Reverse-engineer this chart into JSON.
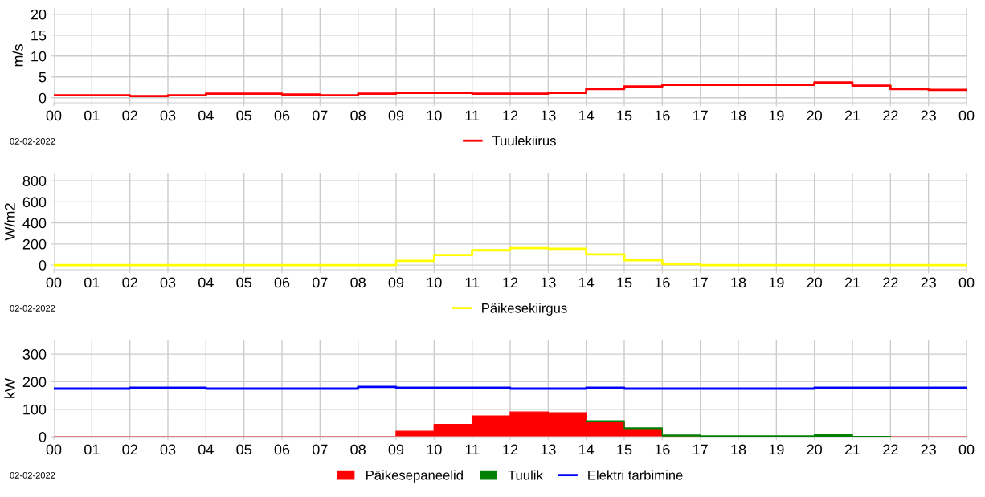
{
  "chart_data": [
    {
      "type": "step",
      "ylabel": "m/s",
      "x": [
        0,
        1,
        2,
        3,
        4,
        5,
        6,
        7,
        8,
        9,
        10,
        11,
        12,
        13,
        14,
        15,
        16,
        17,
        18,
        19,
        20,
        21,
        22,
        23,
        24
      ],
      "series": [
        {
          "name": "Tuulekiirus",
          "color": "#ff0000",
          "values": [
            0.6,
            0.6,
            0.4,
            0.6,
            1.0,
            1.0,
            0.8,
            0.6,
            1.0,
            1.2,
            1.2,
            1.0,
            1.0,
            1.2,
            2.1,
            2.7,
            3.1,
            3.1,
            3.1,
            3.1,
            3.7,
            2.9,
            2.1,
            1.9,
            1.9
          ]
        }
      ],
      "xlim": [
        0,
        24
      ],
      "ylim": [
        -1.2,
        21.5
      ],
      "yticks": [
        0,
        5,
        10,
        15,
        20
      ],
      "xticks": [
        {
          "value": 0,
          "label": "00"
        },
        {
          "value": 1,
          "label": "01"
        },
        {
          "value": 2,
          "label": "02"
        },
        {
          "value": 3,
          "label": "03"
        },
        {
          "value": 4,
          "label": "04"
        },
        {
          "value": 5,
          "label": "05"
        },
        {
          "value": 6,
          "label": "06"
        },
        {
          "value": 7,
          "label": "07"
        },
        {
          "value": 8,
          "label": "08"
        },
        {
          "value": 9,
          "label": "09"
        },
        {
          "value": 10,
          "label": "10"
        },
        {
          "value": 11,
          "label": "11"
        },
        {
          "value": 12,
          "label": "12"
        },
        {
          "value": 13,
          "label": "13"
        },
        {
          "value": 14,
          "label": "14"
        },
        {
          "value": 15,
          "label": "15"
        },
        {
          "value": 16,
          "label": "16"
        },
        {
          "value": 17,
          "label": "17"
        },
        {
          "value": 18,
          "label": "18"
        },
        {
          "value": 19,
          "label": "19"
        },
        {
          "value": 20,
          "label": "20"
        },
        {
          "value": 21,
          "label": "21"
        },
        {
          "value": 22,
          "label": "22"
        },
        {
          "value": 23,
          "label": "23"
        },
        {
          "value": 24,
          "label": "00"
        }
      ],
      "grid": true,
      "legend": "bottom",
      "annotations": [
        "02-02-2022"
      ]
    },
    {
      "type": "step",
      "ylabel": "W/m2",
      "x": [
        0,
        1,
        2,
        3,
        4,
        5,
        6,
        7,
        8,
        9,
        10,
        11,
        12,
        13,
        14,
        15,
        16,
        17,
        18,
        19,
        20,
        21,
        22,
        23,
        24
      ],
      "series": [
        {
          "name": "Päikesekiirgus",
          "color": "#ffff00",
          "values": [
            0,
            0,
            0,
            0,
            0,
            0,
            0,
            0,
            0,
            40,
            95,
            140,
            160,
            155,
            100,
            45,
            10,
            0,
            0,
            0,
            0,
            0,
            0,
            0,
            0
          ]
        }
      ],
      "xlim": [
        0,
        24
      ],
      "ylim": [
        -45,
        870
      ],
      "yticks": [
        0,
        200,
        400,
        600,
        800
      ],
      "xticks": [
        {
          "value": 0,
          "label": "00"
        },
        {
          "value": 1,
          "label": "01"
        },
        {
          "value": 2,
          "label": "02"
        },
        {
          "value": 3,
          "label": "03"
        },
        {
          "value": 4,
          "label": "04"
        },
        {
          "value": 5,
          "label": "05"
        },
        {
          "value": 6,
          "label": "06"
        },
        {
          "value": 7,
          "label": "07"
        },
        {
          "value": 8,
          "label": "08"
        },
        {
          "value": 9,
          "label": "09"
        },
        {
          "value": 10,
          "label": "10"
        },
        {
          "value": 11,
          "label": "11"
        },
        {
          "value": 12,
          "label": "12"
        },
        {
          "value": 13,
          "label": "13"
        },
        {
          "value": 14,
          "label": "14"
        },
        {
          "value": 15,
          "label": "15"
        },
        {
          "value": 16,
          "label": "16"
        },
        {
          "value": 17,
          "label": "17"
        },
        {
          "value": 18,
          "label": "18"
        },
        {
          "value": 19,
          "label": "19"
        },
        {
          "value": 20,
          "label": "20"
        },
        {
          "value": 21,
          "label": "21"
        },
        {
          "value": 22,
          "label": "22"
        },
        {
          "value": 23,
          "label": "23"
        },
        {
          "value": 24,
          "label": "00"
        }
      ],
      "grid": true,
      "legend": "bottom",
      "annotations": [
        "02-02-2022"
      ]
    },
    {
      "type": "area",
      "ylabel": "kW",
      "stacked": true,
      "x": [
        0,
        1,
        2,
        3,
        4,
        5,
        6,
        7,
        8,
        9,
        10,
        11,
        12,
        13,
        14,
        15,
        16,
        17,
        18,
        19,
        20,
        21,
        22,
        23,
        24
      ],
      "series": [
        {
          "name": "Päikesepaneelid",
          "color": "#ff0000",
          "values": [
            0,
            0,
            0,
            0,
            0,
            0,
            0,
            0,
            0,
            20,
            45,
            75,
            90,
            87,
            55,
            30,
            3,
            0,
            0,
            0,
            0,
            0,
            0,
            0,
            0
          ]
        },
        {
          "name": "Tuulik",
          "color": "#008000",
          "values": [
            null,
            null,
            null,
            null,
            null,
            null,
            null,
            null,
            null,
            null,
            null,
            null,
            null,
            null,
            3,
            2,
            3,
            3,
            3,
            3,
            9,
            1,
            0,
            null,
            null
          ]
        },
        {
          "name": "Elektri tarbimine",
          "type": "step",
          "color": "#0000ff",
          "values": [
            175,
            175,
            178,
            178,
            175,
            175,
            175,
            175,
            181,
            178,
            178,
            178,
            175,
            175,
            178,
            175,
            175,
            175,
            175,
            175,
            178,
            178,
            178,
            178,
            178
          ]
        }
      ],
      "xlim": [
        0,
        24
      ],
      "ylim": [
        0,
        350
      ],
      "yticks": [
        0,
        100,
        200,
        300
      ],
      "xticks": [
        {
          "value": 0,
          "label": "00"
        },
        {
          "value": 1,
          "label": "01"
        },
        {
          "value": 2,
          "label": "02"
        },
        {
          "value": 3,
          "label": "03"
        },
        {
          "value": 4,
          "label": "04"
        },
        {
          "value": 5,
          "label": "05"
        },
        {
          "value": 6,
          "label": "06"
        },
        {
          "value": 7,
          "label": "07"
        },
        {
          "value": 8,
          "label": "08"
        },
        {
          "value": 9,
          "label": "09"
        },
        {
          "value": 10,
          "label": "10"
        },
        {
          "value": 11,
          "label": "11"
        },
        {
          "value": 12,
          "label": "12"
        },
        {
          "value": 13,
          "label": "13"
        },
        {
          "value": 14,
          "label": "14"
        },
        {
          "value": 15,
          "label": "15"
        },
        {
          "value": 16,
          "label": "16"
        },
        {
          "value": 17,
          "label": "17"
        },
        {
          "value": 18,
          "label": "18"
        },
        {
          "value": 19,
          "label": "19"
        },
        {
          "value": 20,
          "label": "20"
        },
        {
          "value": 21,
          "label": "21"
        },
        {
          "value": 22,
          "label": "22"
        },
        {
          "value": 23,
          "label": "23"
        },
        {
          "value": 24,
          "label": "00"
        }
      ],
      "grid": true,
      "legend": "bottom",
      "annotations": [
        "02-02-2022"
      ]
    }
  ]
}
